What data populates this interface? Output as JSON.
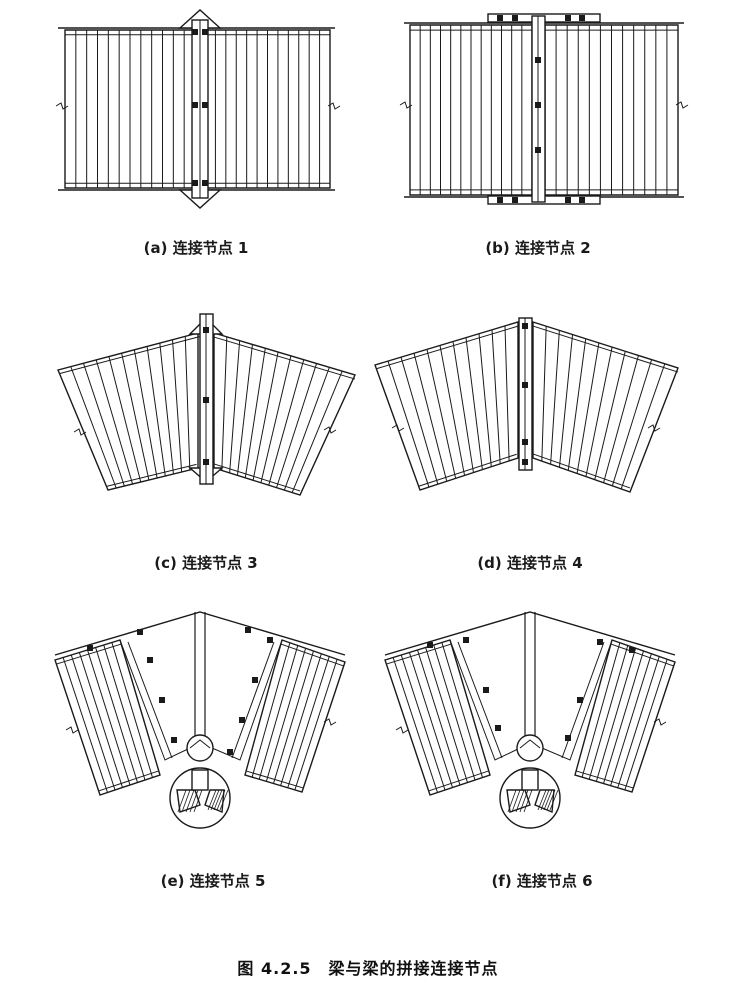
{
  "figure": {
    "title": "图 4.2.5　梁与梁的拼接连接节点",
    "panels": [
      {
        "id": "a",
        "caption": "(a) 连接节点 1"
      },
      {
        "id": "b",
        "caption": "(b) 连接节点 2"
      },
      {
        "id": "c",
        "caption": "(c) 连接节点 3"
      },
      {
        "id": "d",
        "caption": "(d) 连接节点 4"
      },
      {
        "id": "e",
        "caption": "(e) 连接节点 5"
      },
      {
        "id": "f",
        "caption": "(f) 连接节点 6"
      }
    ]
  }
}
